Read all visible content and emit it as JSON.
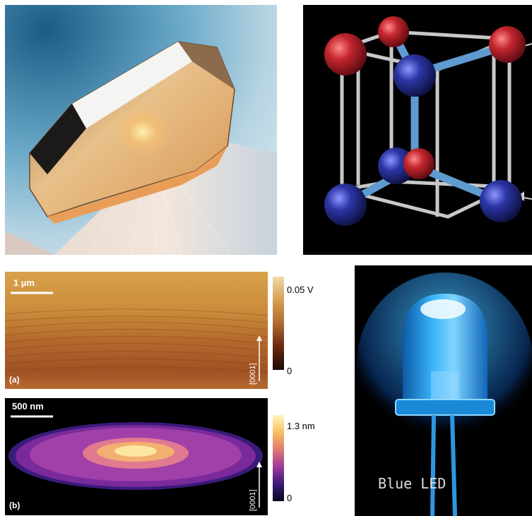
{
  "afm_a": {
    "scale_label": "1 µm",
    "panel_label": "(a)",
    "direction_label": "[0001]",
    "colorbar_max": "0.05 V",
    "colorbar_min": "0"
  },
  "afm_b": {
    "scale_label": "500 nm",
    "panel_label": "(b)",
    "direction_label": "[0001]",
    "colorbar_max": "1.3 nm",
    "colorbar_min": "0"
  },
  "led": {
    "caption": "Blue LED"
  },
  "colors": {
    "atom_red": "#b0202a",
    "atom_blue": "#27309a",
    "bond": "#5e9bd0",
    "led_glow": "#3fb6ff"
  }
}
